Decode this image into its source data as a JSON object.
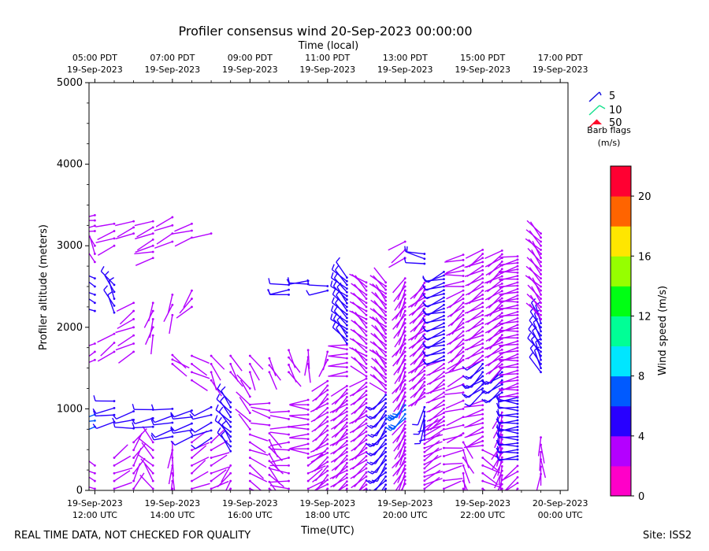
{
  "chart_data": {
    "type": "wind-barb-profile",
    "title": "Profiler consensus wind 20-Sep-2023 00:00:00",
    "top_axis_label": "Time (local)",
    "xlabel": "Time(UTC)",
    "ylabel": "Profiler altitude (meters)",
    "x_range_hours": [
      11.85,
      24.2
    ],
    "ylim": [
      0,
      5000
    ],
    "y_ticks": [
      0,
      1000,
      2000,
      3000,
      4000,
      5000
    ],
    "bottom_ticks": [
      {
        "hour": 12,
        "line1": "19-Sep-2023",
        "line2": "12:00 UTC"
      },
      {
        "hour": 14,
        "line1": "19-Sep-2023",
        "line2": "14:00 UTC"
      },
      {
        "hour": 16,
        "line1": "19-Sep-2023",
        "line2": "16:00 UTC"
      },
      {
        "hour": 18,
        "line1": "19-Sep-2023",
        "line2": "18:00 UTC"
      },
      {
        "hour": 20,
        "line1": "19-Sep-2023",
        "line2": "20:00 UTC"
      },
      {
        "hour": 22,
        "line1": "19-Sep-2023",
        "line2": "22:00 UTC"
      },
      {
        "hour": 24,
        "line1": "20-Sep-2023",
        "line2": "00:00 UTC"
      }
    ],
    "top_ticks": [
      {
        "hour": 12,
        "line1": "05:00 PDT",
        "line2": "19-Sep-2023"
      },
      {
        "hour": 14,
        "line1": "07:00 PDT",
        "line2": "19-Sep-2023"
      },
      {
        "hour": 16,
        "line1": "09:00 PDT",
        "line2": "19-Sep-2023"
      },
      {
        "hour": 18,
        "line1": "11:00 PDT",
        "line2": "19-Sep-2023"
      },
      {
        "hour": 20,
        "line1": "13:00 PDT",
        "line2": "19-Sep-2023"
      },
      {
        "hour": 22,
        "line1": "15:00 PDT",
        "line2": "19-Sep-2023"
      },
      {
        "hour": 24,
        "line1": "17:00 PDT",
        "line2": "19-Sep-2023"
      }
    ],
    "barb_legend": {
      "title_line1": "Barb flags",
      "title_line2": "(m/s)",
      "items": [
        {
          "label": "5",
          "color": "#1a14e0"
        },
        {
          "label": "10",
          "color": "#19e08f"
        },
        {
          "label": "50",
          "color": "#ff0a2a"
        }
      ]
    },
    "colorbar": {
      "label": "Wind speed (m/s)",
      "min": 0,
      "max": 22,
      "step": 2,
      "ticks": [
        0,
        4,
        8,
        12,
        16,
        20
      ],
      "colors": [
        "#ff00c8",
        "#b400ff",
        "#2800ff",
        "#005aff",
        "#00e6ff",
        "#00ff96",
        "#00ff14",
        "#96ff00",
        "#ffe600",
        "#ff6400",
        "#ff0032"
      ]
    },
    "profiles": [
      {
        "t": 12.0,
        "segments": [
          {
            "h0": 20,
            "h1": 390,
            "dz": 95,
            "spd": 2.2,
            "dir": 300
          },
          {
            "h0": 780,
            "h1": 1000,
            "dz": 75,
            "spd": 7.5,
            "dir": 250
          },
          {
            "h0": 1600,
            "h1": 1820,
            "dz": 100,
            "spd": 3.0,
            "dir": 240
          },
          {
            "h0": 2200,
            "h1": 2600,
            "dz": 100,
            "spd": 4.2,
            "dir": 300
          },
          {
            "h0": 2800,
            "h1": 3000,
            "dz": 100,
            "spd": 3.0,
            "dir": 330
          },
          {
            "h0": 3180,
            "h1": 3380,
            "dz": 65,
            "spd": 3.0,
            "dir": 260
          }
        ]
      },
      {
        "t": 12.5,
        "segments": [
          {
            "h0": 20,
            "h1": 490,
            "dz": 95,
            "spd": 2.5,
            "dir": 60
          },
          {
            "h0": 840,
            "h1": 1100,
            "dz": 85,
            "spd": 4.6,
            "dir": 260
          },
          {
            "h0": 1700,
            "h1": 1920,
            "dz": 110,
            "spd": 2.7,
            "dir": 240
          },
          {
            "h0": 2180,
            "h1": 2520,
            "dz": 85,
            "spd": 4.8,
            "dir": 330
          },
          {
            "h0": 3000,
            "h1": 3350,
            "dz": 90,
            "spd": 3.5,
            "dir": 250
          }
        ]
      },
      {
        "t": 13.0,
        "segments": [
          {
            "h0": 20,
            "h1": 590,
            "dz": 95,
            "spd": 2.1,
            "dir": 30
          },
          {
            "h0": 760,
            "h1": 970,
            "dz": 105,
            "spd": 4.6,
            "dir": 260
          },
          {
            "h0": 1700,
            "h1": 2300,
            "dz": 100,
            "spd": 3.0,
            "dir": 240
          },
          {
            "h0": 3150,
            "h1": 3370,
            "dz": 75,
            "spd": 3.5,
            "dir": 250
          }
        ]
      },
      {
        "t": 13.5,
        "segments": [
          {
            "h0": 20,
            "h1": 590,
            "dz": 95,
            "spd": 2.6,
            "dir": 320
          },
          {
            "h0": 780,
            "h1": 990,
            "dz": 105,
            "spd": 4.8,
            "dir": 260
          },
          {
            "h0": 1900,
            "h1": 2300,
            "dz": 100,
            "spd": 3.0,
            "dir": 200
          },
          {
            "h0": 2850,
            "h1": 3300,
            "dz": 75,
            "spd": 3.5,
            "dir": 250
          }
        ]
      },
      {
        "t": 14.0,
        "segments": [
          {
            "h0": 20,
            "h1": 590,
            "dz": 95,
            "spd": 2.6,
            "dir": 180
          },
          {
            "h0": 660,
            "h1": 1000,
            "dz": 85,
            "spd": 4.8,
            "dir": 260
          },
          {
            "h0": 1550,
            "h1": 1660,
            "dz": 55,
            "spd": 2.2,
            "dir": 120
          },
          {
            "h0": 2150,
            "h1": 2400,
            "dz": 125,
            "spd": 3.0,
            "dir": 200
          },
          {
            "h0": 3050,
            "h1": 3350,
            "dz": 100,
            "spd": 3.5,
            "dir": 250
          }
        ]
      },
      {
        "t": 14.5,
        "segments": [
          {
            "h0": 20,
            "h1": 590,
            "dz": 95,
            "spd": 2.4,
            "dir": 60
          },
          {
            "h0": 660,
            "h1": 980,
            "dz": 80,
            "spd": 4.8,
            "dir": 250
          },
          {
            "h0": 1350,
            "h1": 1650,
            "dz": 100,
            "spd": 2.2,
            "dir": 120
          },
          {
            "h0": 2250,
            "h1": 2450,
            "dz": 100,
            "spd": 3.0,
            "dir": 220
          },
          {
            "h0": 3100,
            "h1": 3270,
            "dz": 85,
            "spd": 3.2,
            "dir": 250
          }
        ]
      },
      {
        "t": 15.0,
        "segments": [
          {
            "h0": 20,
            "h1": 590,
            "dz": 95,
            "spd": 2.2,
            "dir": 60
          },
          {
            "h0": 640,
            "h1": 1020,
            "dz": 95,
            "spd": 4.8,
            "dir": 250
          },
          {
            "h0": 1350,
            "h1": 1650,
            "dz": 100,
            "spd": 2.2,
            "dir": 150
          },
          {
            "h0": 3150,
            "h1": 3170,
            "dz": 50,
            "spd": 3.2,
            "dir": 250
          }
        ]
      },
      {
        "t": 15.5,
        "segments": [
          {
            "h0": 20,
            "h1": 390,
            "dz": 95,
            "spd": 2.2,
            "dir": 220
          },
          {
            "h0": 480,
            "h1": 1120,
            "dz": 60,
            "spd": 4.6,
            "dir": 320
          },
          {
            "h0": 1450,
            "h1": 1650,
            "dz": 100,
            "spd": 2.2,
            "dir": 150
          }
        ]
      },
      {
        "t": 16.0,
        "segments": [
          {
            "h0": 20,
            "h1": 690,
            "dz": 95,
            "spd": 2.4,
            "dir": 120
          },
          {
            "h0": 750,
            "h1": 1250,
            "dz": 100,
            "spd": 2.6,
            "dir": 320
          },
          {
            "h0": 1450,
            "h1": 1650,
            "dz": 100,
            "spd": 2.2,
            "dir": 150
          }
        ]
      },
      {
        "t": 16.5,
        "segments": [
          {
            "h0": 20,
            "h1": 700,
            "dz": 85,
            "spd": 2.4,
            "dir": 140
          },
          {
            "h0": 800,
            "h1": 1150,
            "dz": 90,
            "spd": 2.6,
            "dir": 280
          },
          {
            "h0": 1450,
            "h1": 1700,
            "dz": 85,
            "spd": 2.0,
            "dir": 150
          }
        ]
      },
      {
        "t": 17.0,
        "segments": [
          {
            "h0": 20,
            "h1": 1050,
            "dz": 95,
            "spd": 2.4,
            "dir": 270
          },
          {
            "h0": 1450,
            "h1": 1800,
            "dz": 90,
            "spd": 2.2,
            "dir": 150
          },
          {
            "h0": 2400,
            "h1": 2520,
            "dz": 60,
            "spd": 4.6,
            "dir": 270
          }
        ]
      },
      {
        "t": 17.5,
        "segments": [
          {
            "h0": 20,
            "h1": 400,
            "dz": 95,
            "spd": 2.4,
            "dir": 60
          },
          {
            "h0": 450,
            "h1": 1150,
            "dz": 60,
            "spd": 3.0,
            "dir": 270
          },
          {
            "h0": 1550,
            "h1": 1800,
            "dz": 85,
            "spd": 2.2,
            "dir": 180
          },
          {
            "h0": 2530,
            "h1": 2570,
            "dz": 40,
            "spd": 4.6,
            "dir": 270
          }
        ]
      },
      {
        "t": 18.0,
        "segments": [
          {
            "h0": 20,
            "h1": 1350,
            "dz": 55,
            "spd": 3.2,
            "dir": 230
          },
          {
            "h0": 1600,
            "h1": 1700,
            "dz": 100,
            "spd": 2.2,
            "dir": 200
          },
          {
            "h0": 2450,
            "h1": 2550,
            "dz": 55,
            "spd": 4.6,
            "dir": 270
          }
        ]
      },
      {
        "t": 18.5,
        "segments": [
          {
            "h0": 20,
            "h1": 1300,
            "dz": 45,
            "spd": 3.4,
            "dir": 230
          },
          {
            "h0": 1400,
            "h1": 1800,
            "dz": 55,
            "spd": 3.2,
            "dir": 270
          },
          {
            "h0": 1800,
            "h1": 2640,
            "dz": 45,
            "spd": 4.8,
            "dir": 315
          }
        ]
      },
      {
        "t": 19.0,
        "segments": [
          {
            "h0": 20,
            "h1": 1400,
            "dz": 50,
            "spd": 3.2,
            "dir": 230
          },
          {
            "h0": 1400,
            "h1": 2560,
            "dz": 50,
            "spd": 3.4,
            "dir": 310
          }
        ]
      },
      {
        "t": 19.5,
        "segments": [
          {
            "h0": 20,
            "h1": 1200,
            "dz": 50,
            "spd": 4.6,
            "dir": 220
          },
          {
            "h0": 1200,
            "h1": 2560,
            "dz": 45,
            "spd": 3.4,
            "dir": 315
          }
        ]
      },
      {
        "t": 20.0,
        "segments": [
          {
            "h0": 80,
            "h1": 880,
            "dz": 45,
            "spd": 2.6,
            "dir": 210
          },
          {
            "h0": 880,
            "h1": 1100,
            "dz": 55,
            "spd": 7.0,
            "dir": 220
          },
          {
            "h0": 1100,
            "h1": 2600,
            "dz": 50,
            "spd": 3.4,
            "dir": 210
          },
          {
            "h0": 2850,
            "h1": 3100,
            "dz": 100,
            "spd": 3.0,
            "dir": 240
          }
        ]
      },
      {
        "t": 20.5,
        "segments": [
          {
            "h0": 20,
            "h1": 790,
            "dz": 50,
            "spd": 2.6,
            "dir": 60
          },
          {
            "h0": 800,
            "h1": 1050,
            "dz": 55,
            "spd": 4.6,
            "dir": 190
          },
          {
            "h0": 1150,
            "h1": 2550,
            "dz": 45,
            "spd": 3.4,
            "dir": 225
          },
          {
            "h0": 2780,
            "h1": 2900,
            "dz": 60,
            "spd": 4.4,
            "dir": 280
          }
        ]
      },
      {
        "t": 21.0,
        "segments": [
          {
            "h0": 20,
            "h1": 700,
            "dz": 100,
            "spd": 2.4,
            "dir": 80
          },
          {
            "h0": 750,
            "h1": 1600,
            "dz": 50,
            "spd": 3.0,
            "dir": 240
          },
          {
            "h0": 1600,
            "h1": 2700,
            "dz": 45,
            "spd": 4.8,
            "dir": 250
          }
        ]
      },
      {
        "t": 21.5,
        "segments": [
          {
            "h0": 20,
            "h1": 600,
            "dz": 95,
            "spd": 2.4,
            "dir": 160
          },
          {
            "h0": 700,
            "h1": 1600,
            "dz": 100,
            "spd": 2.4,
            "dir": 250
          },
          {
            "h0": 1600,
            "h1": 2450,
            "dz": 50,
            "spd": 3.4,
            "dir": 230
          },
          {
            "h0": 2500,
            "h1": 2950,
            "dz": 65,
            "spd": 3.0,
            "dir": 260
          }
        ]
      },
      {
        "t": 22.0,
        "segments": [
          {
            "h0": 20,
            "h1": 500,
            "dz": 95,
            "spd": 2.6,
            "dir": 120
          },
          {
            "h0": 550,
            "h1": 1100,
            "dz": 55,
            "spd": 2.6,
            "dir": 250
          },
          {
            "h0": 1200,
            "h1": 1600,
            "dz": 50,
            "spd": 4.8,
            "dir": 230
          },
          {
            "h0": 1600,
            "h1": 2950,
            "dz": 50,
            "spd": 3.4,
            "dir": 240
          }
        ]
      },
      {
        "t": 22.5,
        "segments": [
          {
            "h0": 20,
            "h1": 1000,
            "dz": 55,
            "spd": 2.4,
            "dir": 200
          },
          {
            "h0": 1200,
            "h1": 1500,
            "dz": 50,
            "spd": 4.6,
            "dir": 230
          },
          {
            "h0": 1500,
            "h1": 2950,
            "dz": 45,
            "spd": 3.0,
            "dir": 235
          }
        ]
      },
      {
        "t": 22.9,
        "segments": [
          {
            "h0": 20,
            "h1": 350,
            "dz": 70,
            "spd": 2.8,
            "dir": 230
          },
          {
            "h0": 380,
            "h1": 1150,
            "dz": 40,
            "spd": 4.6,
            "dir": 270
          },
          {
            "h0": 1150,
            "h1": 2900,
            "dz": 40,
            "spd": 3.2,
            "dir": 260
          }
        ]
      },
      {
        "t": 23.5,
        "segments": [
          {
            "h0": 200,
            "h1": 650,
            "dz": 90,
            "spd": 2.4,
            "dir": 180
          },
          {
            "h0": 1450,
            "h1": 2100,
            "dz": 50,
            "spd": 4.6,
            "dir": 330
          },
          {
            "h0": 2100,
            "h1": 3150,
            "dz": 50,
            "spd": 3.0,
            "dir": 320
          }
        ]
      }
    ]
  },
  "footer": {
    "left": "REAL TIME DATA, NOT CHECKED FOR QUALITY",
    "right": "Site: ISS2"
  }
}
